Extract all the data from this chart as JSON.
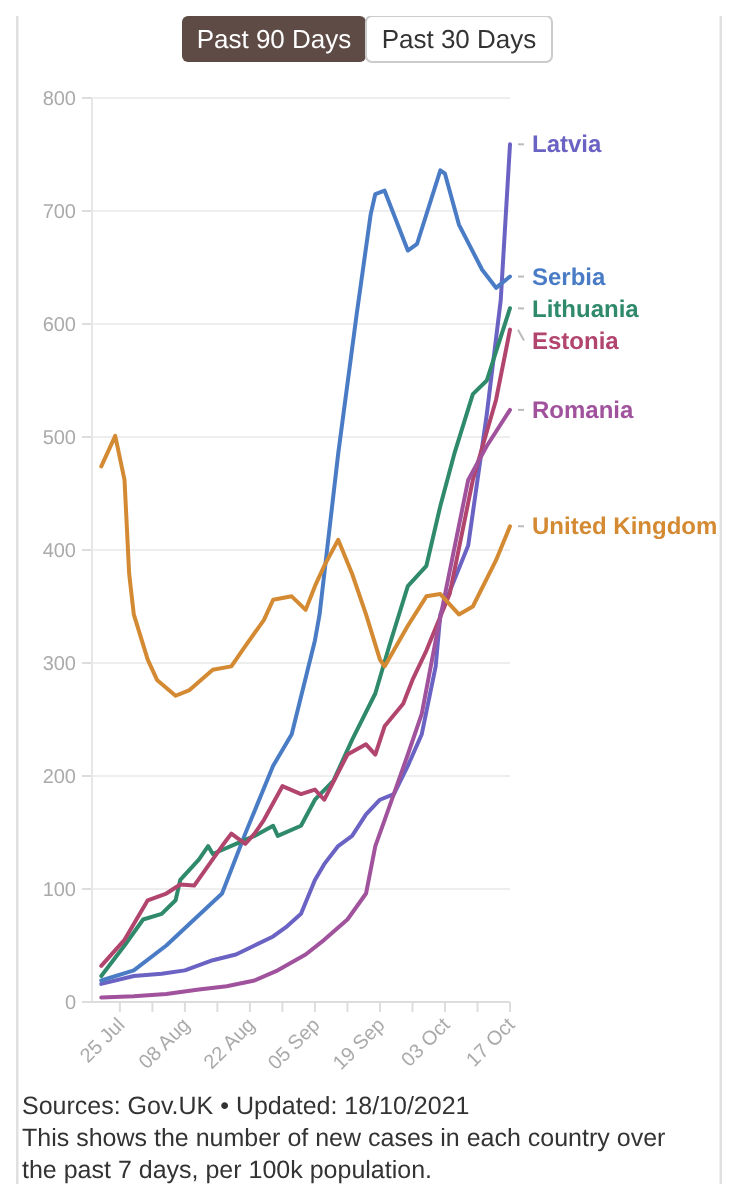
{
  "chart_data": {
    "type": "line",
    "xlim": [
      "2021-07-19",
      "2021-10-17"
    ],
    "ylim": [
      0,
      800
    ],
    "yticks": [
      0,
      100,
      200,
      300,
      400,
      500,
      600,
      700,
      800
    ],
    "xticks": [
      {
        "value": "2021-07-25",
        "label": "25 Jul"
      },
      {
        "value": "2021-08-01",
        "label": null
      },
      {
        "value": "2021-08-08",
        "label": "08 Aug"
      },
      {
        "value": "2021-08-15",
        "label": null
      },
      {
        "value": "2021-08-22",
        "label": "22 Aug"
      },
      {
        "value": "2021-08-29",
        "label": null
      },
      {
        "value": "2021-09-05",
        "label": "05 Sep"
      },
      {
        "value": "2021-09-12",
        "label": null
      },
      {
        "value": "2021-09-19",
        "label": "19 Sep"
      },
      {
        "value": "2021-09-26",
        "label": null
      },
      {
        "value": "2021-10-03",
        "label": "03 Oct"
      },
      {
        "value": "2021-10-10",
        "label": null
      },
      {
        "value": "2021-10-17",
        "label": "17 Oct"
      }
    ],
    "grid": "y",
    "annotations": [
      "Past 90 Days",
      "Past 30 Days",
      "Sources: Gov.UK • Updated: 18/10/2021",
      "This shows the number of new cases in each country over the past 7 days, per 100k population."
    ],
    "series": [
      {
        "name": "Latvia",
        "color": "#6b63c4",
        "x": [
          "2021-07-21",
          "2021-07-28",
          "2021-08-03",
          "2021-08-08",
          "2021-08-14",
          "2021-08-19",
          "2021-08-23",
          "2021-08-27",
          "2021-08-30",
          "2021-09-02",
          "2021-09-05",
          "2021-09-07",
          "2021-09-10",
          "2021-09-13",
          "2021-09-16",
          "2021-09-19",
          "2021-09-22",
          "2021-09-25",
          "2021-09-28",
          "2021-10-01",
          "2021-10-02",
          "2021-10-08",
          "2021-10-12",
          "2021-10-15",
          "2021-10-17"
        ],
        "values": [
          16,
          23,
          25,
          28,
          37,
          42,
          50,
          58,
          67,
          78,
          108,
          122,
          138,
          147,
          166,
          179,
          184,
          209,
          237,
          297,
          343,
          404,
          520,
          621,
          759
        ]
      },
      {
        "name": "Serbia",
        "color": "#4a7cc6",
        "x": [
          "2021-07-21",
          "2021-07-28",
          "2021-08-04",
          "2021-08-10",
          "2021-08-16",
          "2021-08-21",
          "2021-08-27",
          "2021-08-31",
          "2021-09-05",
          "2021-09-06",
          "2021-09-10",
          "2021-09-14",
          "2021-09-17",
          "2021-09-18",
          "2021-09-20",
          "2021-09-25",
          "2021-09-27",
          "2021-10-02",
          "2021-10-03",
          "2021-10-06",
          "2021-10-11",
          "2021-10-14",
          "2021-10-17"
        ],
        "values": [
          19,
          28,
          50,
          73,
          96,
          149,
          209,
          237,
          320,
          343,
          485,
          609,
          697,
          715,
          718,
          665,
          671,
          736,
          733,
          688,
          648,
          632,
          642
        ]
      },
      {
        "name": "Lithuania",
        "color": "#2f8a6c",
        "x": [
          "2021-07-21",
          "2021-07-26",
          "2021-07-30",
          "2021-08-03",
          "2021-08-06",
          "2021-08-07",
          "2021-08-11",
          "2021-08-13",
          "2021-08-14",
          "2021-08-19",
          "2021-08-23",
          "2021-08-27",
          "2021-08-28",
          "2021-09-02",
          "2021-09-05",
          "2021-09-09",
          "2021-09-13",
          "2021-09-18",
          "2021-09-21",
          "2021-09-25",
          "2021-09-29",
          "2021-10-02",
          "2021-10-05",
          "2021-10-09",
          "2021-10-12",
          "2021-10-17"
        ],
        "values": [
          23,
          50,
          73,
          78,
          90,
          108,
          126,
          138,
          131,
          140,
          147,
          156,
          147,
          156,
          179,
          196,
          232,
          273,
          315,
          368,
          386,
          439,
          485,
          538,
          550,
          614
        ]
      },
      {
        "name": "Estonia",
        "color": "#b2456e",
        "x": [
          "2021-07-21",
          "2021-07-26",
          "2021-07-31",
          "2021-08-04",
          "2021-08-07",
          "2021-08-10",
          "2021-08-16",
          "2021-08-18",
          "2021-08-21",
          "2021-08-23",
          "2021-08-25",
          "2021-08-29",
          "2021-09-02",
          "2021-09-05",
          "2021-09-07",
          "2021-09-12",
          "2021-09-16",
          "2021-09-18",
          "2021-09-20",
          "2021-09-24",
          "2021-09-26",
          "2021-09-29",
          "2021-10-04",
          "2021-10-09",
          "2021-10-14",
          "2021-10-17"
        ],
        "values": [
          32,
          55,
          90,
          96,
          104,
          103,
          138,
          149,
          140,
          149,
          161,
          191,
          184,
          188,
          179,
          219,
          228,
          219,
          244,
          264,
          285,
          311,
          361,
          462,
          533,
          595
        ]
      },
      {
        "name": "Romania",
        "color": "#a0539c",
        "x": [
          "2021-07-21",
          "2021-07-28",
          "2021-08-04",
          "2021-08-11",
          "2021-08-17",
          "2021-08-23",
          "2021-08-28",
          "2021-09-03",
          "2021-09-07",
          "2021-09-12",
          "2021-09-16",
          "2021-09-18",
          "2021-09-20",
          "2021-09-25",
          "2021-09-28",
          "2021-10-01",
          "2021-10-08",
          "2021-10-12",
          "2021-10-17"
        ],
        "values": [
          4,
          5,
          7,
          11,
          14,
          19,
          28,
          42,
          55,
          73,
          96,
          138,
          161,
          219,
          255,
          320,
          462,
          492,
          524
        ]
      },
      {
        "name": "United Kingdom",
        "color": "#d48a32",
        "x": [
          "2021-07-21",
          "2021-07-24",
          "2021-07-26",
          "2021-07-27",
          "2021-07-28",
          "2021-07-31",
          "2021-08-02",
          "2021-08-06",
          "2021-08-09",
          "2021-08-14",
          "2021-08-18",
          "2021-08-21",
          "2021-08-25",
          "2021-08-27",
          "2021-08-31",
          "2021-09-03",
          "2021-09-05",
          "2021-09-07",
          "2021-09-10",
          "2021-09-13",
          "2021-09-16",
          "2021-09-19",
          "2021-09-20",
          "2021-09-25",
          "2021-09-29",
          "2021-10-02",
          "2021-10-06",
          "2021-10-09",
          "2021-10-14",
          "2021-10-17"
        ],
        "values": [
          474,
          501,
          462,
          379,
          343,
          303,
          285,
          271,
          276,
          294,
          297,
          315,
          338,
          356,
          359,
          347,
          368,
          386,
          409,
          379,
          343,
          303,
          297,
          333,
          359,
          361,
          343,
          350,
          391,
          421
        ]
      }
    ]
  }
}
